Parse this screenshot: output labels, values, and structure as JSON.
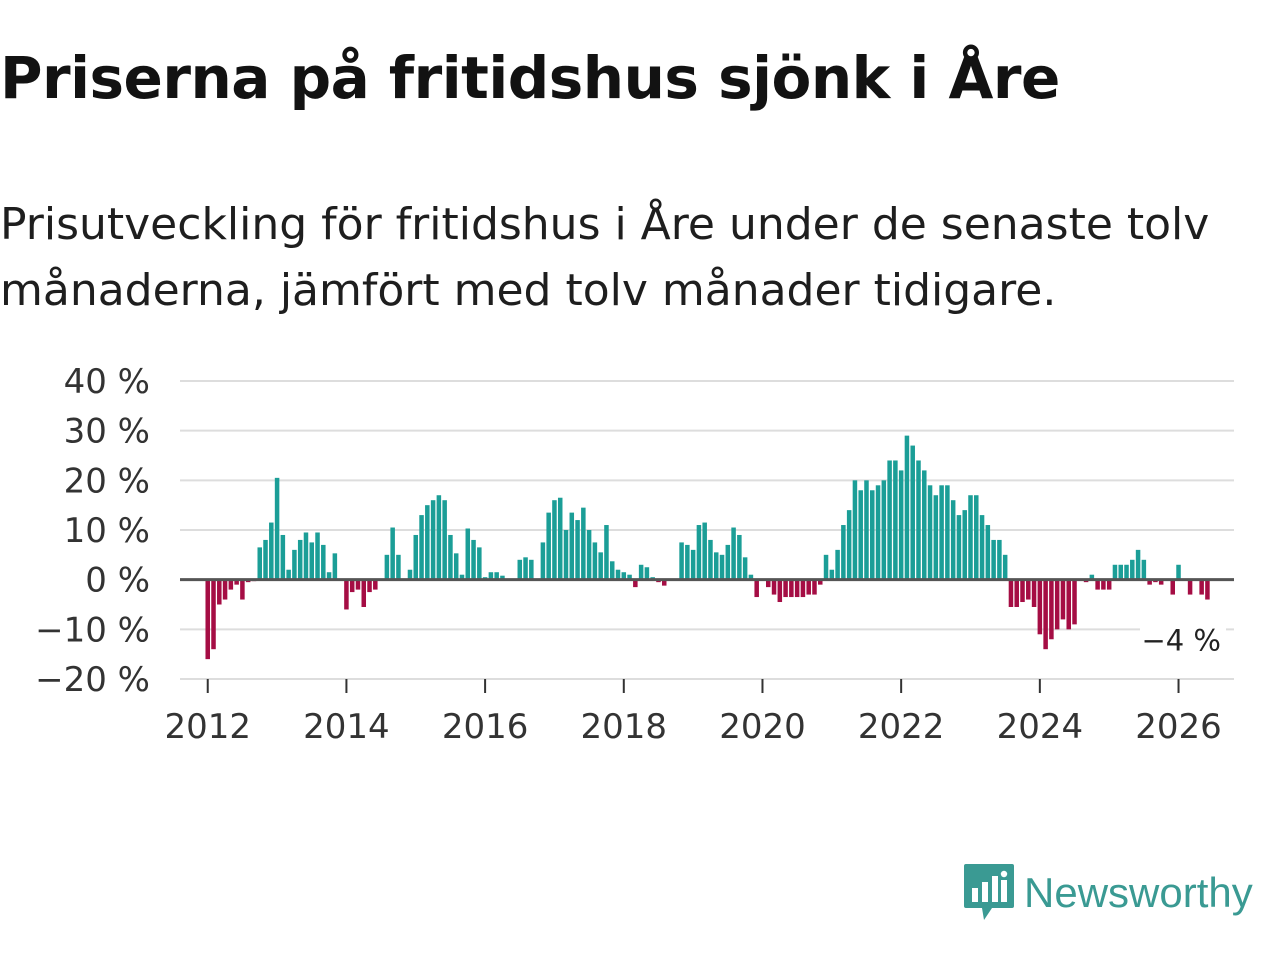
{
  "brand": {
    "name": "Newsworthy",
    "color": "#3a9a93"
  },
  "chart_data": {
    "type": "bar",
    "title": "Priserna på fritidshus sjönk i Åre",
    "subtitle": "Prisutveckling för fritidshus i Åre under de senaste tolv månaderna, jämfört med tolv månader tidigare.",
    "ylim": [
      -20,
      40
    ],
    "yticks": [
      40,
      30,
      20,
      10,
      0,
      -10,
      -20
    ],
    "ytick_labels": [
      "40 %",
      "30 %",
      "20 %",
      "10 %",
      "0 %",
      "−10 %",
      "−20 %"
    ],
    "x_start": 2012,
    "x_step_months": 1,
    "xlim": [
      2011.6,
      2026.8
    ],
    "xticks": [
      2012,
      2014,
      2016,
      2018,
      2020,
      2022,
      2024,
      2026
    ],
    "xtick_labels": [
      "2012",
      "2014",
      "2016",
      "2018",
      "2020",
      "2022",
      "2024",
      "2026"
    ],
    "positive_color": "#1b9e97",
    "negative_color": "#a50d44",
    "last_value_label": "−4 %",
    "values": [
      -16,
      -14,
      -5,
      -4,
      -2,
      -1,
      -4,
      -0.5,
      -0.3,
      6.5,
      8,
      11.5,
      20.5,
      9,
      2,
      6,
      8,
      9.5,
      7.5,
      9.5,
      7,
      1.5,
      5.3,
      0,
      -6,
      -2.5,
      -2,
      -5.5,
      -2.5,
      -2,
      0,
      5,
      10.5,
      5,
      0,
      2,
      9,
      13,
      15,
      16,
      17,
      16,
      9,
      5.3,
      1,
      10.3,
      8,
      6.5,
      0.5,
      1.5,
      1.5,
      0.8,
      0,
      0,
      4,
      4.5,
      4,
      0,
      7.5,
      13.5,
      16,
      16.5,
      10,
      13.5,
      12,
      14.5,
      10,
      7.5,
      5.5,
      11,
      3.7,
      2,
      1.5,
      1,
      -1.5,
      3,
      2.5,
      0.5,
      -0.5,
      -1.2,
      0,
      0,
      7.5,
      7,
      6,
      11,
      11.5,
      8,
      5.5,
      5,
      7,
      10.5,
      9,
      4.5,
      1,
      -3.5,
      0,
      -1.5,
      -3,
      -4.5,
      -3.5,
      -3.5,
      -3.5,
      -3.5,
      -3,
      -3,
      -1,
      5,
      2,
      6,
      11,
      14,
      20,
      18,
      20,
      18,
      19,
      20,
      24,
      24,
      22,
      29,
      27,
      24,
      22,
      19,
      17,
      19,
      19,
      16,
      13,
      14,
      17,
      17,
      13,
      11,
      8,
      8,
      5,
      -5.5,
      -5.5,
      -4.5,
      -4,
      -5.5,
      -11,
      -14,
      -12,
      -10,
      -8,
      -10,
      -9,
      0,
      -0.5,
      1,
      -2,
      -2,
      -2,
      3,
      3,
      3,
      4,
      6,
      4,
      -1,
      -0.5,
      -1,
      0,
      -3,
      3,
      0,
      -3,
      0,
      -3,
      -4
    ]
  }
}
